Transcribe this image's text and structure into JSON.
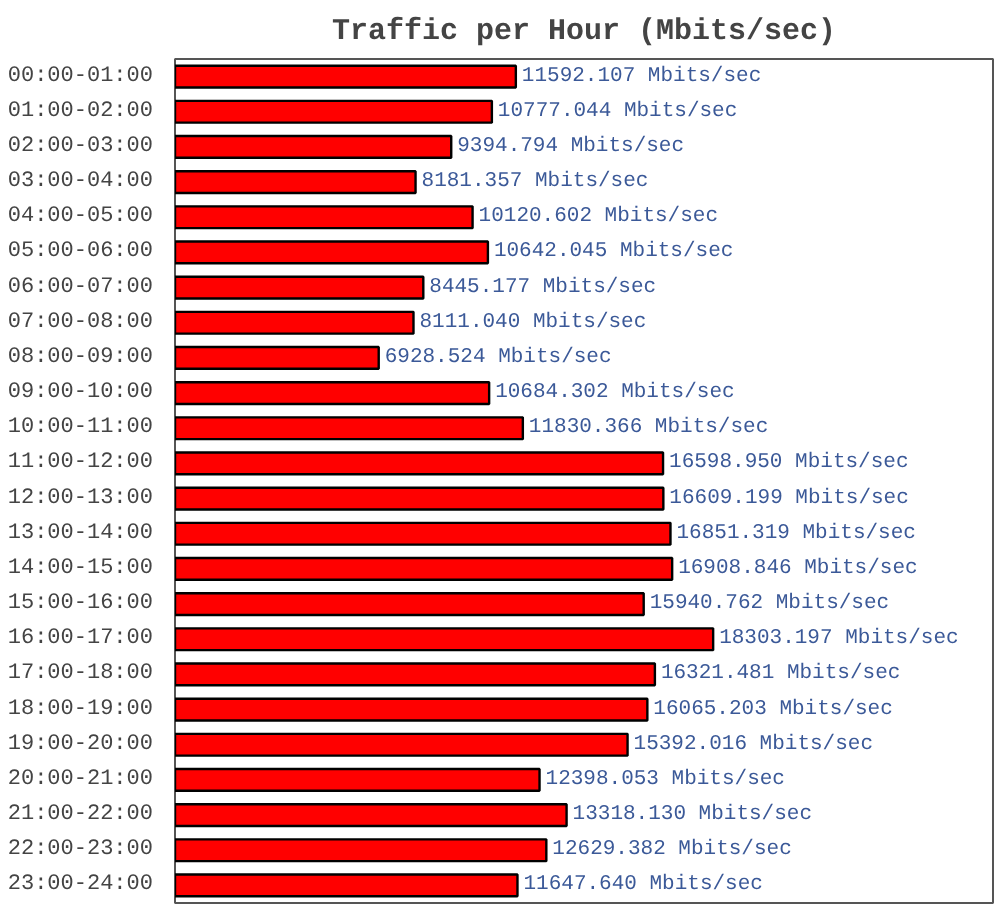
{
  "chart_data": {
    "type": "bar",
    "orientation": "horizontal",
    "title": "Traffic per Hour (Mbits/sec)",
    "categories": [
      "00:00-01:00",
      "01:00-02:00",
      "02:00-03:00",
      "03:00-04:00",
      "04:00-05:00",
      "05:00-06:00",
      "06:00-07:00",
      "07:00-08:00",
      "08:00-09:00",
      "09:00-10:00",
      "10:00-11:00",
      "11:00-12:00",
      "12:00-13:00",
      "13:00-14:00",
      "14:00-15:00",
      "15:00-16:00",
      "16:00-17:00",
      "17:00-18:00",
      "18:00-19:00",
      "19:00-20:00",
      "20:00-21:00",
      "21:00-22:00",
      "22:00-23:00",
      "23:00-24:00"
    ],
    "values": [
      11592.107,
      10777.044,
      9394.794,
      8181.357,
      10120.602,
      10642.045,
      8445.177,
      8111.04,
      6928.524,
      10684.302,
      11830.366,
      16598.95,
      16609.199,
      16851.319,
      16908.846,
      15940.762,
      18303.197,
      16321.481,
      16065.203,
      15392.016,
      12398.053,
      13318.13,
      12629.382,
      11647.64
    ],
    "value_labels": [
      "11592.107 Mbits/sec",
      "10777.044 Mbits/sec",
      "9394.794 Mbits/sec",
      "8181.357 Mbits/sec",
      "10120.602 Mbits/sec",
      "10642.045 Mbits/sec",
      "8445.177 Mbits/sec",
      "8111.040 Mbits/sec",
      "6928.524 Mbits/sec",
      "10684.302 Mbits/sec",
      "11830.366 Mbits/sec",
      "16598.950 Mbits/sec",
      "16609.199 Mbits/sec",
      "16851.319 Mbits/sec",
      "16908.846 Mbits/sec",
      "15940.762 Mbits/sec",
      "18303.197 Mbits/sec",
      "16321.481 Mbits/sec",
      "16065.203 Mbits/sec",
      "15392.016 Mbits/sec",
      "12398.053 Mbits/sec",
      "13318.130 Mbits/sec",
      "12629.382 Mbits/sec",
      "11647.640 Mbits/sec"
    ],
    "color": "#ff0000",
    "grid": false,
    "tick_labels": "y"
  }
}
